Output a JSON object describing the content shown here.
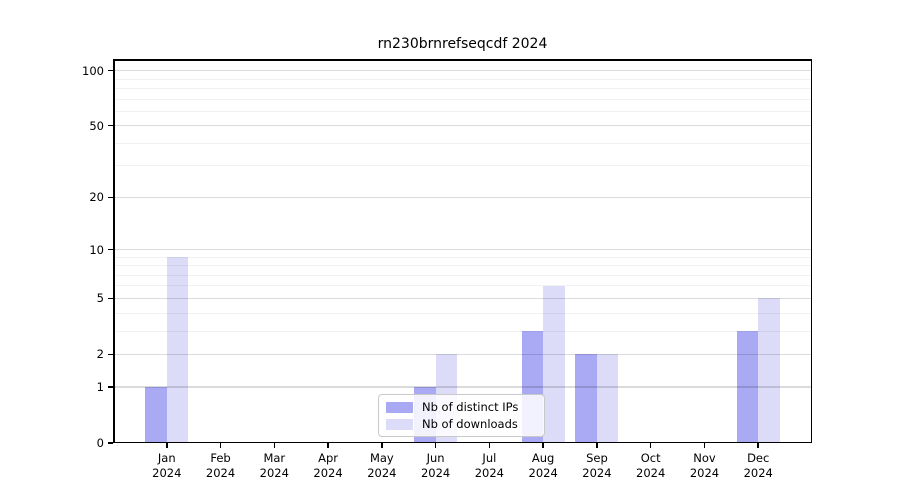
{
  "title": "rn230brnrefseqcdf 2024",
  "colors": {
    "distinct_ips_bar": "#a9a9f4",
    "downloads_bar": "#dcdcf8",
    "grid_major": "rgba(0,0,0,0.14)",
    "grid_minor": "rgba(0,0,0,0.05)",
    "axis": "#000000",
    "legend_border": "#c9c9c9"
  },
  "chart_data": {
    "type": "bar",
    "title": "rn230brnrefseqcdf 2024",
    "categories": [
      {
        "month": "Jan",
        "year": "2024"
      },
      {
        "month": "Feb",
        "year": "2024"
      },
      {
        "month": "Mar",
        "year": "2024"
      },
      {
        "month": "Apr",
        "year": "2024"
      },
      {
        "month": "May",
        "year": "2024"
      },
      {
        "month": "Jun",
        "year": "2024"
      },
      {
        "month": "Jul",
        "year": "2024"
      },
      {
        "month": "Aug",
        "year": "2024"
      },
      {
        "month": "Sep",
        "year": "2024"
      },
      {
        "month": "Oct",
        "year": "2024"
      },
      {
        "month": "Nov",
        "year": "2024"
      },
      {
        "month": "Dec",
        "year": "2024"
      }
    ],
    "series": [
      {
        "name": "Nb of distinct IPs",
        "color": "#a9a9f4",
        "values": [
          1,
          0,
          0,
          0,
          0,
          1,
          0,
          3,
          2,
          0,
          0,
          3
        ]
      },
      {
        "name": "Nb of downloads",
        "color": "#dcdcf8",
        "values": [
          9,
          0,
          0,
          0,
          0,
          2,
          0,
          6,
          2,
          0,
          0,
          5
        ]
      }
    ],
    "y_axis": {
      "ticks": [
        0,
        1,
        2,
        5,
        10,
        20,
        50,
        100
      ],
      "minor_gridlines": [
        3,
        4,
        6,
        7,
        8,
        9,
        30,
        40,
        60,
        70,
        80,
        90
      ],
      "scale": "log1p",
      "range": [
        0,
        115.6
      ]
    },
    "grid": "horizontal",
    "legend": {
      "position": "inside-bottom-center",
      "items": [
        "Nb of distinct IPs",
        "Nb of downloads"
      ]
    }
  }
}
